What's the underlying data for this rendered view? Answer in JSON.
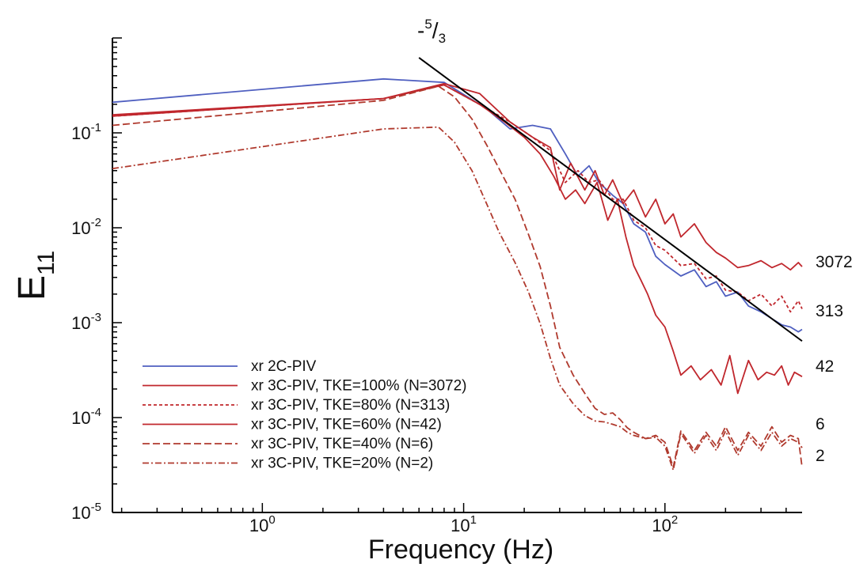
{
  "chart_data": {
    "type": "line",
    "title": "",
    "xlabel": "Frequency (Hz)",
    "ylabel_main": "E",
    "ylabel_sub": "11",
    "x_scale": "log",
    "y_scale": "log",
    "xlim": [
      0.18,
      480
    ],
    "ylim": [
      1e-05,
      1.0
    ],
    "x_ticks": [
      {
        "value": 1,
        "base": "10",
        "exp": "0"
      },
      {
        "value": 10,
        "base": "10",
        "exp": "1"
      },
      {
        "value": 100,
        "base": "10",
        "exp": "2"
      }
    ],
    "y_ticks": [
      {
        "value": 0.1,
        "base": "10",
        "exp": "-1"
      },
      {
        "value": 0.01,
        "base": "10",
        "exp": "-2"
      },
      {
        "value": 0.001,
        "base": "10",
        "exp": "-3"
      },
      {
        "value": 0.0001,
        "base": "10",
        "exp": "-4"
      },
      {
        "value": 1e-05,
        "base": "10",
        "exp": "-5"
      }
    ],
    "grid": false,
    "legend_position": "bottom-left",
    "slope_annotation": {
      "prefix": "-",
      "num": "5",
      "slash": "/",
      "den": "3"
    },
    "reference_line": {
      "x": [
        6.0,
        480
      ],
      "y": [
        0.62,
        0.00064
      ]
    },
    "series": [
      {
        "name": "xr 2C-PIV",
        "color": "#4f5fc0",
        "dash": "solid",
        "x": [
          0.18,
          4,
          8,
          13,
          17,
          22,
          27,
          32,
          37,
          42,
          47,
          55,
          62,
          70,
          80,
          90,
          100,
          120,
          140,
          160,
          180,
          200,
          230,
          260,
          300,
          340,
          380,
          420,
          460,
          480
        ],
        "y": [
          0.21,
          0.37,
          0.34,
          0.18,
          0.11,
          0.12,
          0.11,
          0.06,
          0.035,
          0.045,
          0.03,
          0.022,
          0.018,
          0.011,
          0.009,
          0.005,
          0.0041,
          0.0031,
          0.0036,
          0.0024,
          0.0027,
          0.0019,
          0.0021,
          0.0015,
          0.0013,
          0.0011,
          0.00095,
          0.0009,
          0.0008,
          0.00085
        ],
        "end_label": ""
      },
      {
        "name": "xr 3C-PIV, TKE=100% (N=3072)",
        "color": "#c0272d",
        "dash": "solid",
        "x": [
          0.18,
          4,
          8,
          12,
          17,
          22,
          27,
          30,
          34,
          40,
          45,
          50,
          55,
          62,
          70,
          80,
          90,
          100,
          110,
          120,
          140,
          160,
          180,
          200,
          230,
          260,
          300,
          340,
          380,
          420,
          460,
          480
        ],
        "y": [
          0.155,
          0.23,
          0.33,
          0.26,
          0.13,
          0.09,
          0.07,
          0.025,
          0.048,
          0.025,
          0.04,
          0.022,
          0.032,
          0.018,
          0.025,
          0.013,
          0.02,
          0.011,
          0.014,
          0.008,
          0.011,
          0.007,
          0.0055,
          0.0048,
          0.0038,
          0.004,
          0.0045,
          0.0038,
          0.0042,
          0.0036,
          0.0043,
          0.0039
        ],
        "end_label": "3072"
      },
      {
        "name": "xr 3C-PIV, TKE=80% (N=313)",
        "color": "#c0272d",
        "dash": "4,3",
        "x": [
          0.18,
          4,
          8,
          12,
          17,
          22,
          27,
          32,
          37,
          42,
          47,
          55,
          62,
          70,
          80,
          90,
          100,
          120,
          140,
          160,
          180,
          200,
          230,
          260,
          300,
          340,
          380,
          420,
          460,
          480
        ],
        "y": [
          0.15,
          0.23,
          0.32,
          0.2,
          0.13,
          0.09,
          0.065,
          0.03,
          0.04,
          0.03,
          0.032,
          0.02,
          0.02,
          0.012,
          0.01,
          0.0065,
          0.0058,
          0.004,
          0.0042,
          0.0029,
          0.0031,
          0.0022,
          0.0021,
          0.0017,
          0.002,
          0.0015,
          0.0019,
          0.0013,
          0.0017,
          0.0014
        ],
        "end_label": "313"
      },
      {
        "name": "xr 3C-PIV, TKE=60% (N=42)",
        "color": "#c0272d",
        "dash": "solid",
        "x": [
          0.18,
          4,
          8,
          12,
          16,
          20,
          24,
          28,
          32,
          36,
          40,
          46,
          52,
          58,
          64,
          70,
          76,
          82,
          90,
          100,
          110,
          120,
          135,
          150,
          170,
          190,
          210,
          230,
          260,
          290,
          320,
          350,
          380,
          410,
          440,
          480
        ],
        "y": [
          0.15,
          0.23,
          0.32,
          0.2,
          0.13,
          0.09,
          0.06,
          0.035,
          0.02,
          0.025,
          0.018,
          0.03,
          0.012,
          0.02,
          0.008,
          0.004,
          0.0028,
          0.002,
          0.0012,
          0.0009,
          0.0005,
          0.00028,
          0.00035,
          0.00025,
          0.00032,
          0.00022,
          0.00045,
          0.00018,
          0.0004,
          0.00025,
          0.0003,
          0.00028,
          0.00035,
          0.00022,
          0.0003,
          0.00027
        ],
        "end_label": "42"
      },
      {
        "name": "xr 3C-PIV, TKE=40% (N=6)",
        "color": "#b03a2e",
        "dash": "9,4",
        "x": [
          0.18,
          4,
          7.5,
          9,
          11,
          13,
          15,
          18,
          21,
          24,
          27,
          30,
          35,
          40,
          45,
          50,
          55,
          60,
          65,
          70,
          80,
          90,
          100,
          110,
          120,
          140,
          160,
          180,
          200,
          230,
          260,
          300,
          340,
          380,
          420,
          460,
          480
        ],
        "y": [
          0.12,
          0.22,
          0.31,
          0.24,
          0.14,
          0.075,
          0.042,
          0.02,
          0.0085,
          0.0039,
          0.0015,
          0.00055,
          0.00028,
          0.00018,
          0.000125,
          0.000108,
          0.000112,
          9.5e-05,
          7.8e-05,
          7e-05,
          6e-05,
          6.5e-05,
          5.5e-05,
          3e-05,
          7.2e-05,
          4.5e-05,
          7e-05,
          5e-05,
          8e-05,
          4.5e-05,
          7e-05,
          5e-05,
          8e-05,
          5.5e-05,
          6.5e-05,
          6e-05,
          3e-05
        ],
        "end_label": "6"
      },
      {
        "name": "xr 3C-PIV, TKE=20% (N=2)",
        "color": "#b03a2e",
        "dash": "8,3,2,3",
        "x": [
          0.18,
          4,
          7.5,
          9,
          11,
          13,
          15,
          18,
          21,
          24,
          27,
          30,
          35,
          40,
          45,
          50,
          55,
          60,
          65,
          70,
          80,
          90,
          100,
          110,
          120,
          140,
          160,
          180,
          200,
          230,
          260,
          300,
          340,
          380,
          420,
          460,
          480
        ],
        "y": [
          0.042,
          0.11,
          0.115,
          0.08,
          0.04,
          0.018,
          0.009,
          0.0043,
          0.0021,
          0.00098,
          0.00042,
          0.00022,
          0.00014,
          0.000105,
          9.2e-05,
          9e-05,
          8.5e-05,
          8e-05,
          7e-05,
          6.5e-05,
          6e-05,
          6.2e-05,
          5e-05,
          2.8e-05,
          6.8e-05,
          4.2e-05,
          6.5e-05,
          4.5e-05,
          7.2e-05,
          4e-05,
          6.5e-05,
          4.5e-05,
          7e-05,
          5e-05,
          6e-05,
          5.5e-05,
          4.8e-05
        ],
        "end_label": "2"
      }
    ]
  }
}
